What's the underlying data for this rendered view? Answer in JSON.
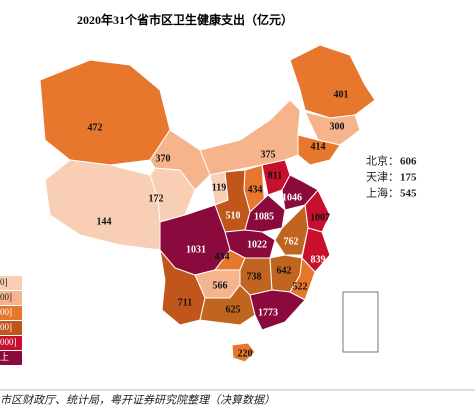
{
  "title": "2020年31个省市区卫生健康支出（亿元）",
  "region_values": [
    401,
    300,
    414,
    375,
    472,
    144,
    172,
    370,
    119,
    434,
    510,
    811,
    1046,
    1085,
    1007,
    1022,
    762,
    839,
    1031,
    434,
    738,
    642,
    522,
    566,
    711,
    625,
    1773,
    220
  ],
  "municipalities": [
    {
      "label": "北京：",
      "value": 606
    },
    {
      "label": "天津：",
      "value": 175
    },
    {
      "label": "上海：",
      "value": 545
    }
  ],
  "legend": [
    "0]",
    "00]",
    "00]",
    "00]",
    "000]",
    "上"
  ],
  "source": "市区财政厅、统计局，粤开证券研究院整理（决算数据）"
}
